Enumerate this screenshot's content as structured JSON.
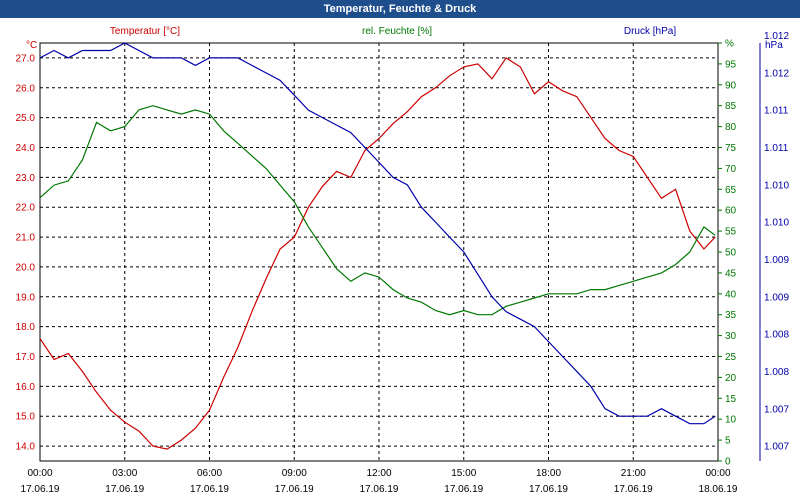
{
  "window": {
    "title": "Temperatur, Feuchte & Druck"
  },
  "colors": {
    "temperature": "#cc0000",
    "humidity": "#007700",
    "pressure": "#0000aa",
    "grid": "#000000"
  },
  "chart_data": {
    "type": "line",
    "title": "Temperatur, Feuchte & Druck",
    "grid": true,
    "x_ticks": [
      {
        "time": "00:00",
        "date": "17.06.19"
      },
      {
        "time": "03:00",
        "date": "17.06.19"
      },
      {
        "time": "06:00",
        "date": "17.06.19"
      },
      {
        "time": "09:00",
        "date": "17.06.19"
      },
      {
        "time": "12:00",
        "date": "17.06.19"
      },
      {
        "time": "15:00",
        "date": "17.06.19"
      },
      {
        "time": "18:00",
        "date": "17.06.19"
      },
      {
        "time": "21:00",
        "date": "17.06.19"
      },
      {
        "time": "00:00",
        "date": "18.06.19"
      }
    ],
    "axes": {
      "left": {
        "unit": "°C",
        "ylim": [
          13.5,
          27.5
        ],
        "ticks": [
          "14.0",
          "15.0",
          "16.0",
          "17.0",
          "18.0",
          "19.0",
          "20.0",
          "21.0",
          "22.0",
          "23.0",
          "24.0",
          "25.0",
          "26.0",
          "27.0"
        ]
      },
      "right1": {
        "unit": "%",
        "ylim": [
          0,
          100
        ],
        "ticks": [
          "0",
          "5",
          "10",
          "15",
          "20",
          "25",
          "30",
          "35",
          "40",
          "45",
          "50",
          "55",
          "60",
          "65",
          "70",
          "75",
          "80",
          "85",
          "90",
          "95",
          "%"
        ]
      },
      "right2": {
        "unit": "hPa",
        "ylim": [
          1.0068,
          1.0124
        ],
        "ticks": [
          "1.007",
          "1.007",
          "1.008",
          "1.008",
          "1.009",
          "1.009",
          "1.010",
          "1.010",
          "1.011",
          "1.011",
          "1.012",
          "1.012"
        ]
      }
    },
    "series": [
      {
        "name": "Temperatur [°C]",
        "axis": "left",
        "color": "#cc0000",
        "x": [
          0,
          0.5,
          1,
          1.5,
          2,
          2.5,
          3,
          3.5,
          4,
          4.5,
          5,
          5.5,
          6,
          6.5,
          7,
          7.5,
          8,
          8.5,
          9,
          9.5,
          10,
          10.5,
          11,
          11.5,
          12,
          12.5,
          13,
          13.5,
          14,
          14.5,
          15,
          15.5,
          16,
          16.5,
          17,
          17.5,
          18,
          18.5,
          19,
          19.5,
          20,
          20.5,
          21,
          21.5,
          22,
          22.5,
          23,
          23.5,
          23.9
        ],
        "y": [
          17.6,
          16.9,
          17.1,
          16.5,
          15.8,
          15.2,
          14.8,
          14.5,
          14.0,
          13.9,
          14.2,
          14.6,
          15.2,
          16.3,
          17.3,
          18.5,
          19.6,
          20.6,
          21.0,
          22.0,
          22.7,
          23.2,
          23.0,
          23.9,
          24.3,
          24.8,
          25.2,
          25.7,
          26.0,
          26.4,
          26.7,
          26.8,
          26.3,
          27.0,
          26.7,
          25.8,
          26.2,
          25.9,
          25.7,
          25.0,
          24.3,
          23.9,
          23.7,
          23.0,
          22.3,
          22.6,
          21.2,
          20.6,
          21.0
        ]
      },
      {
        "name": "rel. Feuchte [%]",
        "axis": "right1",
        "color": "#007700",
        "x": [
          0,
          0.5,
          1,
          1.5,
          2,
          2.5,
          3,
          3.5,
          4,
          4.5,
          5,
          5.5,
          6,
          6.5,
          7,
          7.5,
          8,
          8.5,
          9,
          9.5,
          10,
          10.5,
          11,
          11.5,
          12,
          12.5,
          13,
          13.5,
          14,
          14.5,
          15,
          15.5,
          16,
          16.5,
          17,
          17.5,
          18,
          18.5,
          19,
          19.5,
          20,
          20.5,
          21,
          21.5,
          22,
          22.5,
          23,
          23.5,
          23.9
        ],
        "y": [
          63,
          66,
          67,
          72,
          81,
          79,
          80,
          84,
          85,
          84,
          83,
          84,
          83,
          79,
          76,
          73,
          70,
          66,
          62,
          56,
          51,
          46,
          43,
          45,
          44,
          41,
          39,
          38,
          36,
          35,
          36,
          35,
          35,
          37,
          38,
          39,
          40,
          40,
          40,
          41,
          41,
          42,
          43,
          44,
          45,
          47,
          50,
          56,
          54
        ]
      },
      {
        "name": "Druck [hPa]",
        "axis": "right2",
        "color": "#0000aa",
        "x": [
          0,
          0.5,
          1,
          1.5,
          2,
          2.5,
          3,
          3.5,
          4,
          4.5,
          5,
          5.5,
          6,
          6.5,
          7,
          7.5,
          8,
          8.5,
          9,
          9.5,
          10,
          10.5,
          11,
          11.5,
          12,
          12.5,
          13,
          13.5,
          14,
          14.5,
          15,
          15.5,
          16,
          16.5,
          17,
          17.5,
          18,
          18.5,
          19,
          19.5,
          20,
          20.5,
          21,
          21.5,
          22,
          22.5,
          23,
          23.5,
          23.9
        ],
        "y": [
          1.0122,
          1.0123,
          1.0122,
          1.0123,
          1.0123,
          1.0123,
          1.0124,
          1.0123,
          1.0122,
          1.0122,
          1.0122,
          1.0121,
          1.0122,
          1.0122,
          1.0122,
          1.0121,
          1.012,
          1.0119,
          1.0117,
          1.0115,
          1.0114,
          1.0113,
          1.0112,
          1.011,
          1.0108,
          1.0106,
          1.0105,
          1.0102,
          1.01,
          1.0098,
          1.0096,
          1.0093,
          1.009,
          1.0088,
          1.0087,
          1.0086,
          1.0084,
          1.0082,
          1.008,
          1.0078,
          1.0075,
          1.0074,
          1.0074,
          1.0074,
          1.0075,
          1.0074,
          1.0073,
          1.0073,
          1.0074
        ]
      }
    ]
  }
}
